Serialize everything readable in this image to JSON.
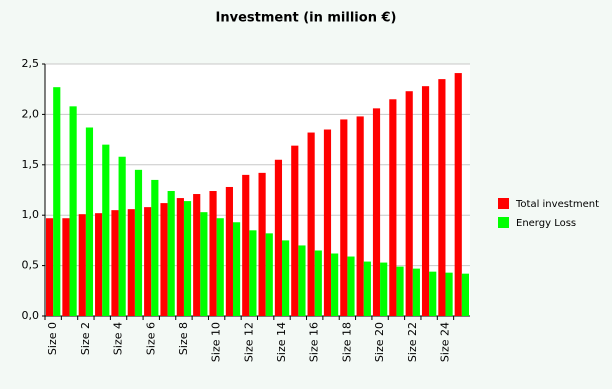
{
  "chart_data": {
    "type": "bar",
    "title": "Investment (in million €)",
    "categories": [
      "Size 0",
      null,
      "Size 2",
      null,
      "Size 4",
      null,
      "Size 6",
      null,
      "Size 8",
      null,
      "Size 10",
      null,
      "Size 12",
      null,
      "Size 14",
      null,
      "Size 16",
      null,
      "Size 18",
      null,
      "Size 20",
      null,
      "Size 22",
      null,
      "Size 24",
      null
    ],
    "series": [
      {
        "name": "Total investment",
        "color": "#ff0000",
        "values": [
          0.97,
          0.97,
          1.01,
          1.02,
          1.05,
          1.06,
          1.08,
          1.12,
          1.17,
          1.21,
          1.24,
          1.28,
          1.4,
          1.42,
          1.55,
          1.69,
          1.82,
          1.85,
          1.95,
          1.98,
          2.06,
          2.15,
          2.23,
          2.28,
          2.35,
          2.41
        ]
      },
      {
        "name": "Energy Loss",
        "color": "#00ff00",
        "values": [
          2.27,
          2.08,
          1.87,
          1.7,
          1.58,
          1.45,
          1.35,
          1.24,
          1.14,
          1.03,
          0.97,
          0.93,
          0.85,
          0.82,
          0.75,
          0.7,
          0.65,
          0.62,
          0.59,
          0.54,
          0.53,
          0.49,
          0.47,
          0.44,
          0.43,
          0.42
        ]
      }
    ],
    "ylim": [
      0,
      2.5
    ],
    "yticks": [
      {
        "value": 0,
        "label": "0,0"
      },
      {
        "value": 0.5,
        "label": "0,5"
      },
      {
        "value": 1,
        "label": "1,0"
      },
      {
        "value": 1.5,
        "label": "1,5"
      },
      {
        "value": 2,
        "label": "2,0"
      },
      {
        "value": 2.5,
        "label": "2,5"
      }
    ],
    "grid": true,
    "legend": "right"
  }
}
